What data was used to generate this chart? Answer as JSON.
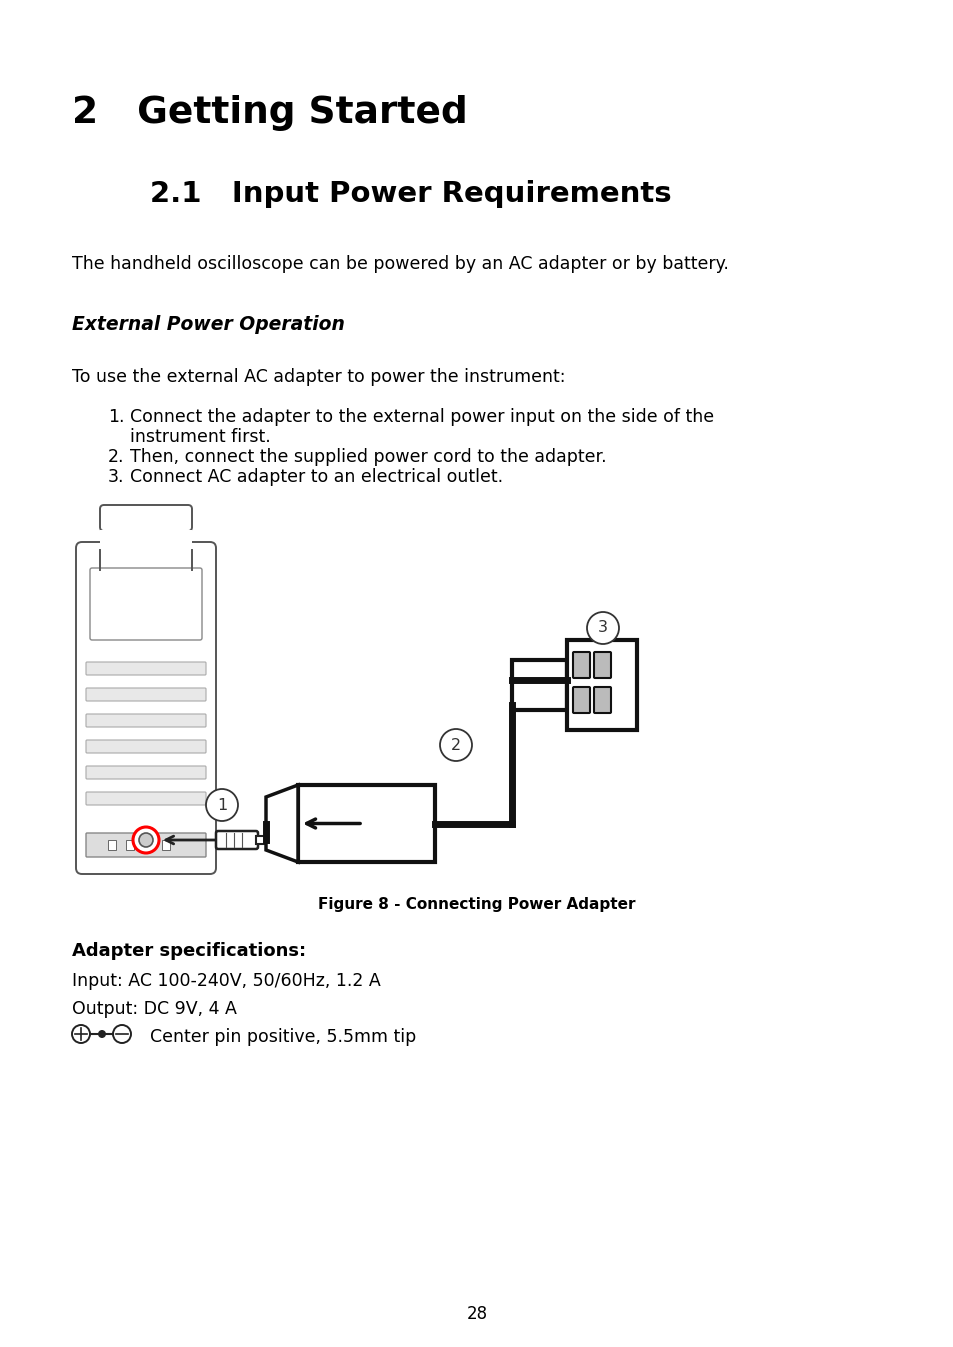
{
  "bg_color": "#ffffff",
  "title_h1": "2   Getting Started",
  "title_h2": "2.1   Input Power Requirements",
  "intro_text": "The handheld oscilloscope can be powered by an AC adapter or by battery.",
  "section_title": "External Power Operation",
  "instruction_intro": "To use the external AC adapter to power the instrument:",
  "steps": [
    "Connect the adapter to the external power input on the side of the\ninstrument first.",
    "Then, connect the supplied power cord to the adapter.",
    "Connect AC adapter to an electrical outlet."
  ],
  "figure_caption": "Figure 8 - Connecting Power Adapter",
  "adapter_spec_title": "Adapter specifications:",
  "adapter_spec_line1": "Input: AC 100-240V, 50/60Hz, 1.2 A",
  "adapter_spec_line2": "Output: DC 9V, 4 A",
  "adapter_spec_line3": "  Center pin positive, 5.5mm tip",
  "page_number": "28"
}
